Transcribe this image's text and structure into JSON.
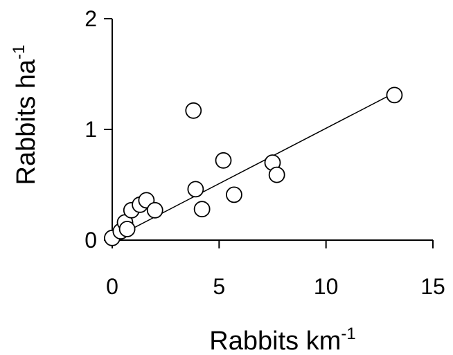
{
  "chart_data": {
    "type": "scatter",
    "title": "",
    "xlabel": "Rabbits km",
    "xlabel_superscript": "-1",
    "ylabel": "Rabbits ha",
    "ylabel_superscript": "-1",
    "xlim": [
      0,
      15
    ],
    "ylim": [
      0,
      2
    ],
    "xticks": [
      "0",
      "5",
      "10",
      "15"
    ],
    "yticks": [
      "0",
      "1",
      "2"
    ],
    "grid": false,
    "legend": "none",
    "marker": "open-circle",
    "series": [
      {
        "points": [
          {
            "x": 0.0,
            "y": 0.02
          },
          {
            "x": 0.4,
            "y": 0.08
          },
          {
            "x": 0.6,
            "y": 0.16
          },
          {
            "x": 0.7,
            "y": 0.1
          },
          {
            "x": 0.9,
            "y": 0.27
          },
          {
            "x": 1.3,
            "y": 0.32
          },
          {
            "x": 1.6,
            "y": 0.36
          },
          {
            "x": 2.0,
            "y": 0.27
          },
          {
            "x": 3.8,
            "y": 1.17
          },
          {
            "x": 3.9,
            "y": 0.46
          },
          {
            "x": 4.2,
            "y": 0.28
          },
          {
            "x": 5.2,
            "y": 0.72
          },
          {
            "x": 5.7,
            "y": 0.41
          },
          {
            "x": 7.5,
            "y": 0.7
          },
          {
            "x": 7.7,
            "y": 0.59
          },
          {
            "x": 13.2,
            "y": 1.31
          }
        ]
      }
    ],
    "fit_line": {
      "type": "linear",
      "start": {
        "x": 0.0,
        "y": 0.01
      },
      "end": {
        "x": 13.2,
        "y": 1.33
      }
    }
  },
  "colors": {
    "axis": "#000000",
    "marker_stroke": "#000000",
    "marker_fill": "#ffffff",
    "fit_line": "#000000",
    "background": "#ffffff"
  }
}
